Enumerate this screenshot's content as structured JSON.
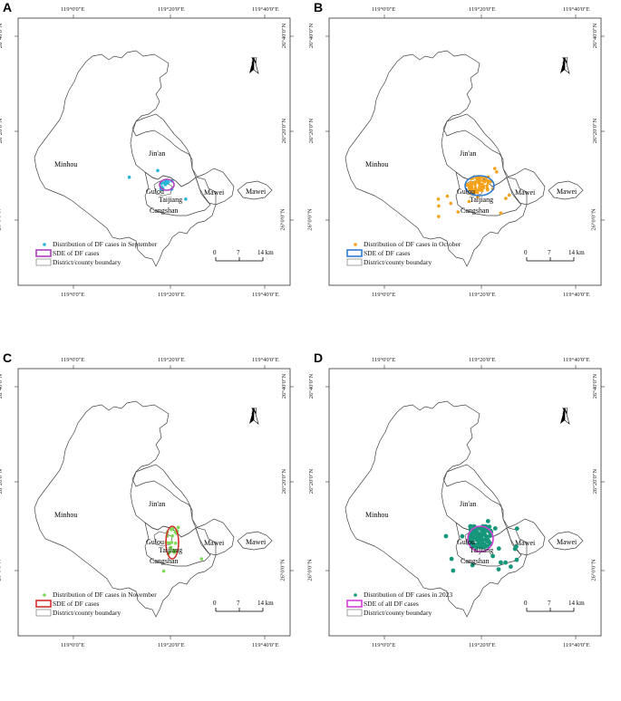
{
  "panels": [
    {
      "label": "A",
      "legend": {
        "points": "Distribution of DF cases in September",
        "sde": "SDE of DF cases",
        "boundary": "District/county boundary"
      },
      "colors": {
        "points": "#29b6d6",
        "sde": "#b03ac0"
      }
    },
    {
      "label": "B",
      "legend": {
        "points": "Distribution of DF cases in October",
        "sde": "SDE of DF cases",
        "boundary": "District/county boundary"
      },
      "colors": {
        "points": "#f5a21b",
        "sde": "#2f7bd0"
      }
    },
    {
      "label": "C",
      "legend": {
        "points": "Distribution of DF cases in November",
        "sde": "SDE of DF cases",
        "boundary": "District/county boundary"
      },
      "colors": {
        "points": "#7ed957",
        "sde": "#d62d2d"
      }
    },
    {
      "label": "D",
      "legend": {
        "points": "Distribution of DF cases in 2023",
        "sde": "SDE of all DF cases",
        "boundary": "District/county boundary"
      },
      "colors": {
        "points": "#16967a",
        "sde": "#d13fd6"
      }
    }
  ],
  "coords": {
    "lon_left": "119°0'0\"E",
    "lon_mid": "119°20'0\"E",
    "lon_right": "119°40'0\"E",
    "lat_top": "26°40'0\"N",
    "lat_mid": "26°20'0\"N",
    "lat_bottom": "26°0'0\"N"
  },
  "places": {
    "minhou": "Minhou",
    "jinan": "Jin'an",
    "gulou": "Gulou",
    "taijiang": "Taijiang",
    "cangshan": "Cangshan",
    "mawei": "Mawei",
    "mawei2": "Mawei"
  },
  "north_arrow": {
    "letter": "N",
    "icon": "north-arrow-icon"
  },
  "scale": {
    "zero": "0",
    "mid": "7",
    "end": "14 km"
  }
}
